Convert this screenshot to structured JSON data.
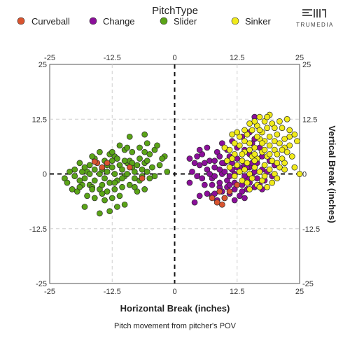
{
  "legend": {
    "title": "PitchType",
    "items": [
      {
        "label": "Curveball",
        "color": "#d9542f"
      },
      {
        "label": "Change",
        "color": "#8b0f9a"
      },
      {
        "label": "Slider",
        "color": "#5aa417"
      },
      {
        "label": "Sinker",
        "color": "#f0ea1a"
      }
    ]
  },
  "brand": {
    "name": "TRUMEDIA",
    "logo_icon": "trumedia-logo-icon"
  },
  "chart_data": {
    "type": "scatter",
    "xlabel": "Horizontal Break (inches)",
    "ylabel": "Vertical Break (inches)",
    "caption": "Pitch movement from pitcher's POV",
    "xlim": [
      -25,
      25
    ],
    "ylim": [
      -25,
      25
    ],
    "xticks": [
      "-25",
      "-12.5",
      "0",
      "12.5",
      "25"
    ],
    "yticks": [
      "25",
      "12.5",
      "0",
      "-12.5",
      "-25"
    ],
    "grid": true,
    "zero_lines": "dashed",
    "legend_position": "top",
    "series": [
      {
        "name": "Curveball",
        "color": "#d9542f",
        "points": [
          [
            -15.5,
            2.5
          ],
          [
            -13.5,
            2.5
          ],
          [
            -14.5,
            1.5
          ],
          [
            -16.0,
            2.8
          ],
          [
            -6.5,
            -1.0
          ],
          [
            -9.0,
            1.5
          ],
          [
            8.5,
            -6.5
          ],
          [
            9.5,
            -7.0
          ],
          [
            7.5,
            -5.5
          ],
          [
            11.0,
            -4.0
          ],
          [
            10.0,
            -5.5
          ],
          [
            12.5,
            -2.5
          ],
          [
            9.0,
            -4.0
          ]
        ]
      },
      {
        "name": "Slider",
        "color": "#5aa417",
        "points": [
          [
            -16.0,
            3.5
          ],
          [
            -12.0,
            4.0
          ],
          [
            -8.5,
            5.0
          ],
          [
            -7.0,
            6.0
          ],
          [
            -6.0,
            5.0
          ],
          [
            -5.0,
            4.5
          ],
          [
            -2.0,
            4.0
          ],
          [
            -2.5,
            3.5
          ],
          [
            -1.5,
            0.5
          ],
          [
            -3.0,
            2.0
          ],
          [
            -4.0,
            -0.5
          ],
          [
            -10.0,
            5.5
          ],
          [
            -13.0,
            4.5
          ],
          [
            -17.0,
            2.0
          ],
          [
            -19.0,
            2.5
          ],
          [
            -20.0,
            1.0
          ],
          [
            -21.0,
            0.5
          ],
          [
            -22.0,
            -1.0
          ],
          [
            -21.5,
            -2.0
          ],
          [
            -19.0,
            -1.5
          ],
          [
            -18.0,
            -1.0
          ],
          [
            -17.5,
            0.5
          ],
          [
            -17.0,
            -2.5
          ],
          [
            -16.5,
            -3.0
          ],
          [
            -16.0,
            -1.5
          ],
          [
            -15.0,
            0.0
          ],
          [
            -14.5,
            1.0
          ],
          [
            -14.0,
            -1.0
          ],
          [
            -13.5,
            0.5
          ],
          [
            -13.0,
            -2.0
          ],
          [
            -12.5,
            1.5
          ],
          [
            -12.0,
            0.0
          ],
          [
            -11.5,
            -1.5
          ],
          [
            -11.0,
            2.0
          ],
          [
            -10.5,
            1.0
          ],
          [
            -10.0,
            -0.5
          ],
          [
            -9.5,
            2.5
          ],
          [
            -9.0,
            3.0
          ],
          [
            -8.5,
            1.5
          ],
          [
            -8.0,
            0.5
          ],
          [
            -7.5,
            2.0
          ],
          [
            -7.0,
            -1.5
          ],
          [
            -6.5,
            1.0
          ],
          [
            -6.0,
            2.5
          ],
          [
            -5.5,
            0.5
          ],
          [
            -5.0,
            -1.0
          ],
          [
            -4.5,
            1.5
          ],
          [
            -9.0,
            -2.5
          ],
          [
            -10.5,
            -3.0
          ],
          [
            -12.0,
            -3.5
          ],
          [
            -13.5,
            -4.0
          ],
          [
            -15.0,
            -3.5
          ],
          [
            -17.5,
            -5.0
          ],
          [
            -19.5,
            -4.0
          ],
          [
            -20.5,
            -3.5
          ],
          [
            -18.5,
            -2.5
          ],
          [
            -16.0,
            -5.5
          ],
          [
            -14.0,
            -6.0
          ],
          [
            -11.0,
            -5.0
          ],
          [
            -13.0,
            -8.5
          ],
          [
            -11.5,
            -7.5
          ],
          [
            -15.0,
            -9.0
          ],
          [
            -18.0,
            -7.5
          ],
          [
            -10.0,
            -7.0
          ],
          [
            -7.5,
            -4.0
          ],
          [
            -6.0,
            -3.5
          ],
          [
            -8.0,
            -3.0
          ],
          [
            -12.5,
            -5.5
          ],
          [
            -14.5,
            -4.5
          ],
          [
            -16.5,
            4.0
          ],
          [
            -15.0,
            5.0
          ],
          [
            -11.0,
            6.5
          ],
          [
            -9.5,
            6.0
          ],
          [
            -7.0,
            3.5
          ],
          [
            -5.5,
            3.0
          ],
          [
            -4.0,
            5.5
          ],
          [
            -3.5,
            6.5
          ],
          [
            -9.0,
            8.5
          ],
          [
            -6.0,
            9.0
          ],
          [
            -5.5,
            7.0
          ],
          [
            -12.5,
            3.0
          ],
          [
            -13.5,
            2.0
          ],
          [
            -11.5,
            3.5
          ],
          [
            -10.0,
            3.0
          ],
          [
            -8.5,
            2.5
          ],
          [
            -16.0,
            1.0
          ],
          [
            -17.0,
            0.0
          ],
          [
            -18.5,
            0.5
          ],
          [
            -20.0,
            -0.5
          ],
          [
            -18.0,
            1.5
          ],
          [
            -14.5,
            -2.5
          ],
          [
            -12.0,
            -2.0
          ],
          [
            -10.5,
            -1.0
          ],
          [
            -9.5,
            0.0
          ],
          [
            -8.0,
            -1.0
          ],
          [
            -6.5,
            -0.5
          ],
          [
            -19.0,
            -3.0
          ],
          [
            -16.5,
            -3.5
          ],
          [
            -14.0,
            3.0
          ],
          [
            -12.5,
            5.0
          ]
        ]
      },
      {
        "name": "Change",
        "color": "#8b0f9a",
        "points": [
          [
            3.0,
            3.5
          ],
          [
            3.5,
            0.5
          ],
          [
            4.5,
            -0.5
          ],
          [
            5.0,
            2.0
          ],
          [
            5.5,
            4.5
          ],
          [
            6.0,
            -2.5
          ],
          [
            6.5,
            1.0
          ],
          [
            7.0,
            3.0
          ],
          [
            7.5,
            -1.0
          ],
          [
            8.0,
            1.5
          ],
          [
            8.5,
            5.0
          ],
          [
            9.0,
            -3.0
          ],
          [
            9.5,
            0.0
          ],
          [
            10.0,
            2.5
          ],
          [
            10.5,
            -1.5
          ],
          [
            11.0,
            4.0
          ],
          [
            11.5,
            1.0
          ],
          [
            12.0,
            -2.0
          ],
          [
            12.5,
            3.5
          ],
          [
            13.0,
            0.5
          ],
          [
            13.5,
            -4.0
          ],
          [
            14.0,
            2.0
          ],
          [
            14.5,
            -1.0
          ],
          [
            15.0,
            4.5
          ],
          [
            15.5,
            0.0
          ],
          [
            16.0,
            -3.0
          ],
          [
            16.5,
            2.5
          ],
          [
            17.0,
            6.0
          ],
          [
            17.5,
            1.0
          ],
          [
            18.0,
            -1.5
          ],
          [
            6.5,
            -4.5
          ],
          [
            7.5,
            -5.0
          ],
          [
            8.5,
            -6.0
          ],
          [
            10.0,
            -5.5
          ],
          [
            11.0,
            -4.5
          ],
          [
            12.0,
            -6.0
          ],
          [
            13.0,
            -5.0
          ],
          [
            14.0,
            -5.5
          ],
          [
            5.0,
            -5.0
          ],
          [
            4.0,
            -6.5
          ],
          [
            9.0,
            4.0
          ],
          [
            10.5,
            5.5
          ],
          [
            12.5,
            6.0
          ],
          [
            14.0,
            5.5
          ],
          [
            15.5,
            7.0
          ],
          [
            11.5,
            7.5
          ],
          [
            9.5,
            7.0
          ],
          [
            13.5,
            8.5
          ],
          [
            16.0,
            8.0
          ],
          [
            6.5,
            6.0
          ],
          [
            8.0,
            -0.5
          ],
          [
            9.0,
            1.0
          ],
          [
            10.0,
            0.5
          ],
          [
            11.0,
            -0.5
          ],
          [
            12.0,
            0.0
          ],
          [
            13.0,
            1.5
          ],
          [
            14.0,
            -0.5
          ],
          [
            15.0,
            1.5
          ],
          [
            16.0,
            0.5
          ],
          [
            7.0,
            0.0
          ],
          [
            8.0,
            3.0
          ],
          [
            9.5,
            2.5
          ],
          [
            10.5,
            3.0
          ],
          [
            11.5,
            2.5
          ],
          [
            12.5,
            1.5
          ],
          [
            13.5,
            3.0
          ],
          [
            14.5,
            1.5
          ],
          [
            15.5,
            2.5
          ],
          [
            16.5,
            3.5
          ],
          [
            17.5,
            4.0
          ],
          [
            7.5,
            -2.5
          ],
          [
            9.0,
            -2.0
          ],
          [
            10.5,
            -3.0
          ],
          [
            12.0,
            -3.5
          ],
          [
            13.5,
            -2.5
          ],
          [
            15.0,
            -2.0
          ],
          [
            16.5,
            -1.0
          ],
          [
            18.5,
            0.5
          ],
          [
            19.0,
            3.0
          ],
          [
            17.0,
            -2.5
          ],
          [
            6.0,
            2.5
          ],
          [
            5.5,
            -1.0
          ],
          [
            4.0,
            2.5
          ],
          [
            3.0,
            -2.0
          ],
          [
            20.0,
            2.0
          ],
          [
            14.5,
            -3.5
          ],
          [
            11.0,
            -2.5
          ],
          [
            9.5,
            -4.0
          ],
          [
            8.0,
            -4.5
          ],
          [
            15.0,
            9.5
          ],
          [
            5.0,
            5.5
          ],
          [
            4.5,
            4.0
          ],
          [
            19.5,
            -0.5
          ],
          [
            17.5,
            -3.5
          ],
          [
            16.0,
            13.0
          ]
        ]
      },
      {
        "name": "Sinker",
        "color": "#f0ea1a",
        "points": [
          [
            10.0,
            6.0
          ],
          [
            11.0,
            5.5
          ],
          [
            12.0,
            4.5
          ],
          [
            13.0,
            6.5
          ],
          [
            14.0,
            5.0
          ],
          [
            15.0,
            7.0
          ],
          [
            16.0,
            6.0
          ],
          [
            17.0,
            8.0
          ],
          [
            18.0,
            7.5
          ],
          [
            19.0,
            6.5
          ],
          [
            20.0,
            5.5
          ],
          [
            21.0,
            7.0
          ],
          [
            22.0,
            6.0
          ],
          [
            23.0,
            8.5
          ],
          [
            24.0,
            9.0
          ],
          [
            14.5,
            9.0
          ],
          [
            15.5,
            10.0
          ],
          [
            16.5,
            11.0
          ],
          [
            17.5,
            9.5
          ],
          [
            18.5,
            10.5
          ],
          [
            19.5,
            11.5
          ],
          [
            20.5,
            9.0
          ],
          [
            21.5,
            10.5
          ],
          [
            22.5,
            12.5
          ],
          [
            16.0,
            12.0
          ],
          [
            17.0,
            13.0
          ],
          [
            18.0,
            12.0
          ],
          [
            19.0,
            13.5
          ],
          [
            15.0,
            11.5
          ],
          [
            14.0,
            10.0
          ],
          [
            13.0,
            8.5
          ],
          [
            12.0,
            7.0
          ],
          [
            11.5,
            3.5
          ],
          [
            12.5,
            2.0
          ],
          [
            13.5,
            3.0
          ],
          [
            14.5,
            2.5
          ],
          [
            15.5,
            4.0
          ],
          [
            16.5,
            3.5
          ],
          [
            17.5,
            5.0
          ],
          [
            18.5,
            4.0
          ],
          [
            19.5,
            3.0
          ],
          [
            20.5,
            4.5
          ],
          [
            21.5,
            3.5
          ],
          [
            22.5,
            5.0
          ],
          [
            23.5,
            4.0
          ],
          [
            13.0,
            0.5
          ],
          [
            14.0,
            1.0
          ],
          [
            15.0,
            0.0
          ],
          [
            16.0,
            1.5
          ],
          [
            17.0,
            0.5
          ],
          [
            18.0,
            2.0
          ],
          [
            19.0,
            1.0
          ],
          [
            20.0,
            0.0
          ],
          [
            21.0,
            1.5
          ],
          [
            22.0,
            2.5
          ],
          [
            13.5,
            -1.5
          ],
          [
            14.5,
            -2.0
          ],
          [
            15.5,
            -1.0
          ],
          [
            16.5,
            -2.5
          ],
          [
            17.5,
            -1.5
          ],
          [
            18.5,
            -3.0
          ],
          [
            19.5,
            -2.0
          ],
          [
            20.5,
            -1.0
          ],
          [
            12.0,
            -0.5
          ],
          [
            11.0,
            1.5
          ],
          [
            10.5,
            3.0
          ],
          [
            15.0,
            -3.5
          ],
          [
            17.0,
            -3.0
          ],
          [
            16.0,
            3.0
          ],
          [
            18.0,
            5.5
          ],
          [
            19.0,
            8.5
          ],
          [
            20.0,
            10.5
          ],
          [
            21.0,
            12.0
          ],
          [
            22.0,
            8.0
          ],
          [
            23.0,
            6.5
          ],
          [
            24.0,
            1.5
          ],
          [
            25.0,
            0.0
          ],
          [
            17.5,
            7.0
          ],
          [
            15.0,
            5.5
          ],
          [
            13.5,
            4.5
          ],
          [
            16.5,
            8.5
          ],
          [
            18.5,
            13.0
          ],
          [
            20.0,
            7.5
          ],
          [
            21.5,
            5.5
          ],
          [
            14.0,
            7.5
          ],
          [
            12.5,
            9.5
          ],
          [
            11.5,
            9.0
          ],
          [
            17.0,
            10.0
          ],
          [
            19.0,
            4.5
          ],
          [
            22.0,
            1.0
          ],
          [
            24.5,
            7.5
          ],
          [
            23.0,
            10.0
          ],
          [
            16.0,
            4.5
          ],
          [
            18.0,
            -0.5
          ],
          [
            20.5,
            2.5
          ]
        ]
      }
    ]
  }
}
